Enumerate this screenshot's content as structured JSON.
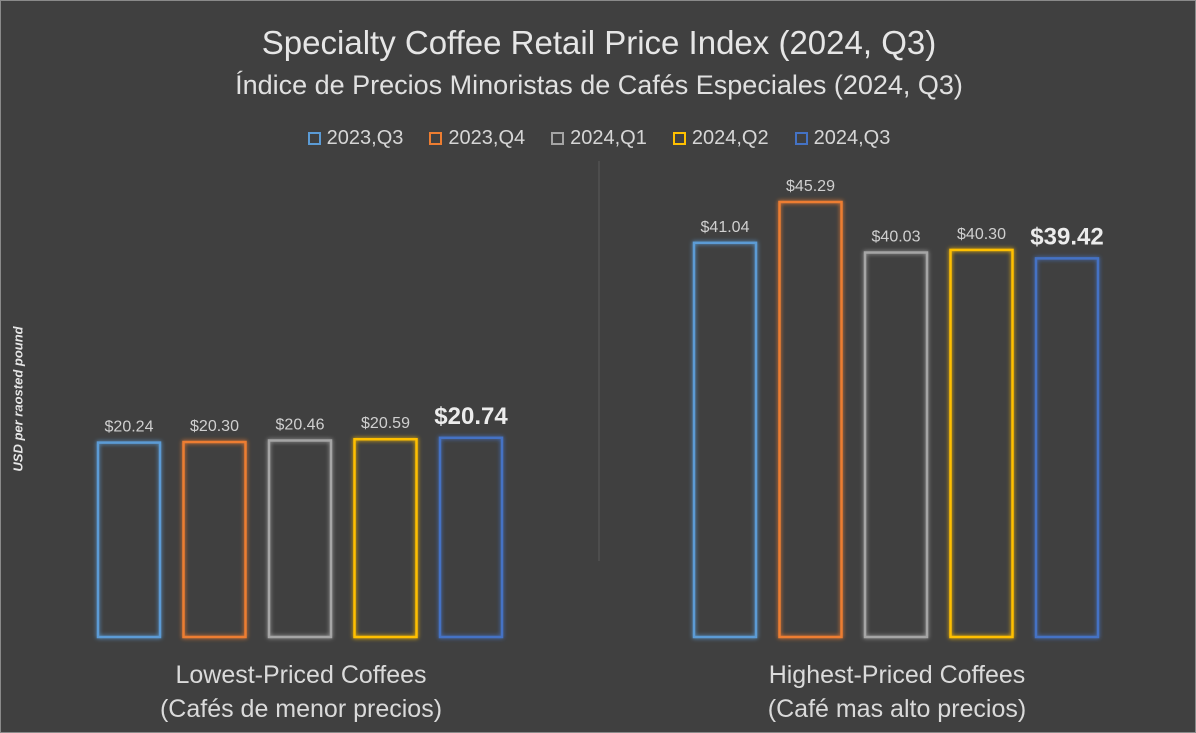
{
  "chart_data": {
    "type": "bar",
    "title": "Specialty Coffee Retail Price Index (2024, Q3)",
    "subtitle": "Índice de Precios Minoristas de Cafés Especiales (2024, Q3)",
    "ylabel": "USD per raosted pound",
    "groups": [
      {
        "label": "Lowest-Priced Coffees",
        "sublabel": "(Cafés de menor precios)"
      },
      {
        "label": "Highest-Priced Coffees",
        "sublabel": "(Café mas alto precios)"
      }
    ],
    "series": [
      {
        "name": "2023,Q3",
        "color": "#5b9bd5",
        "values": [
          20.24,
          41.04
        ],
        "labels": [
          "$20.24",
          "$41.04"
        ]
      },
      {
        "name": "2023,Q4",
        "color": "#ed7d31",
        "values": [
          20.3,
          45.29
        ],
        "labels": [
          "$20.30",
          "$45.29"
        ]
      },
      {
        "name": "2024,Q1",
        "color": "#a5a5a5",
        "values": [
          20.46,
          40.03
        ],
        "labels": [
          "$20.46",
          "$40.03"
        ]
      },
      {
        "name": "2024,Q2",
        "color": "#ffc000",
        "values": [
          20.59,
          40.3
        ],
        "labels": [
          "$20.59",
          "$40.30"
        ]
      },
      {
        "name": "2024,Q3",
        "color": "#4472c4",
        "values": [
          20.74,
          39.42
        ],
        "labels": [
          "$20.74",
          "$39.42"
        ]
      }
    ],
    "highlight_series": "2024,Q3",
    "ylim": [
      0,
      47
    ],
    "grid": false,
    "legend_position": "top"
  }
}
